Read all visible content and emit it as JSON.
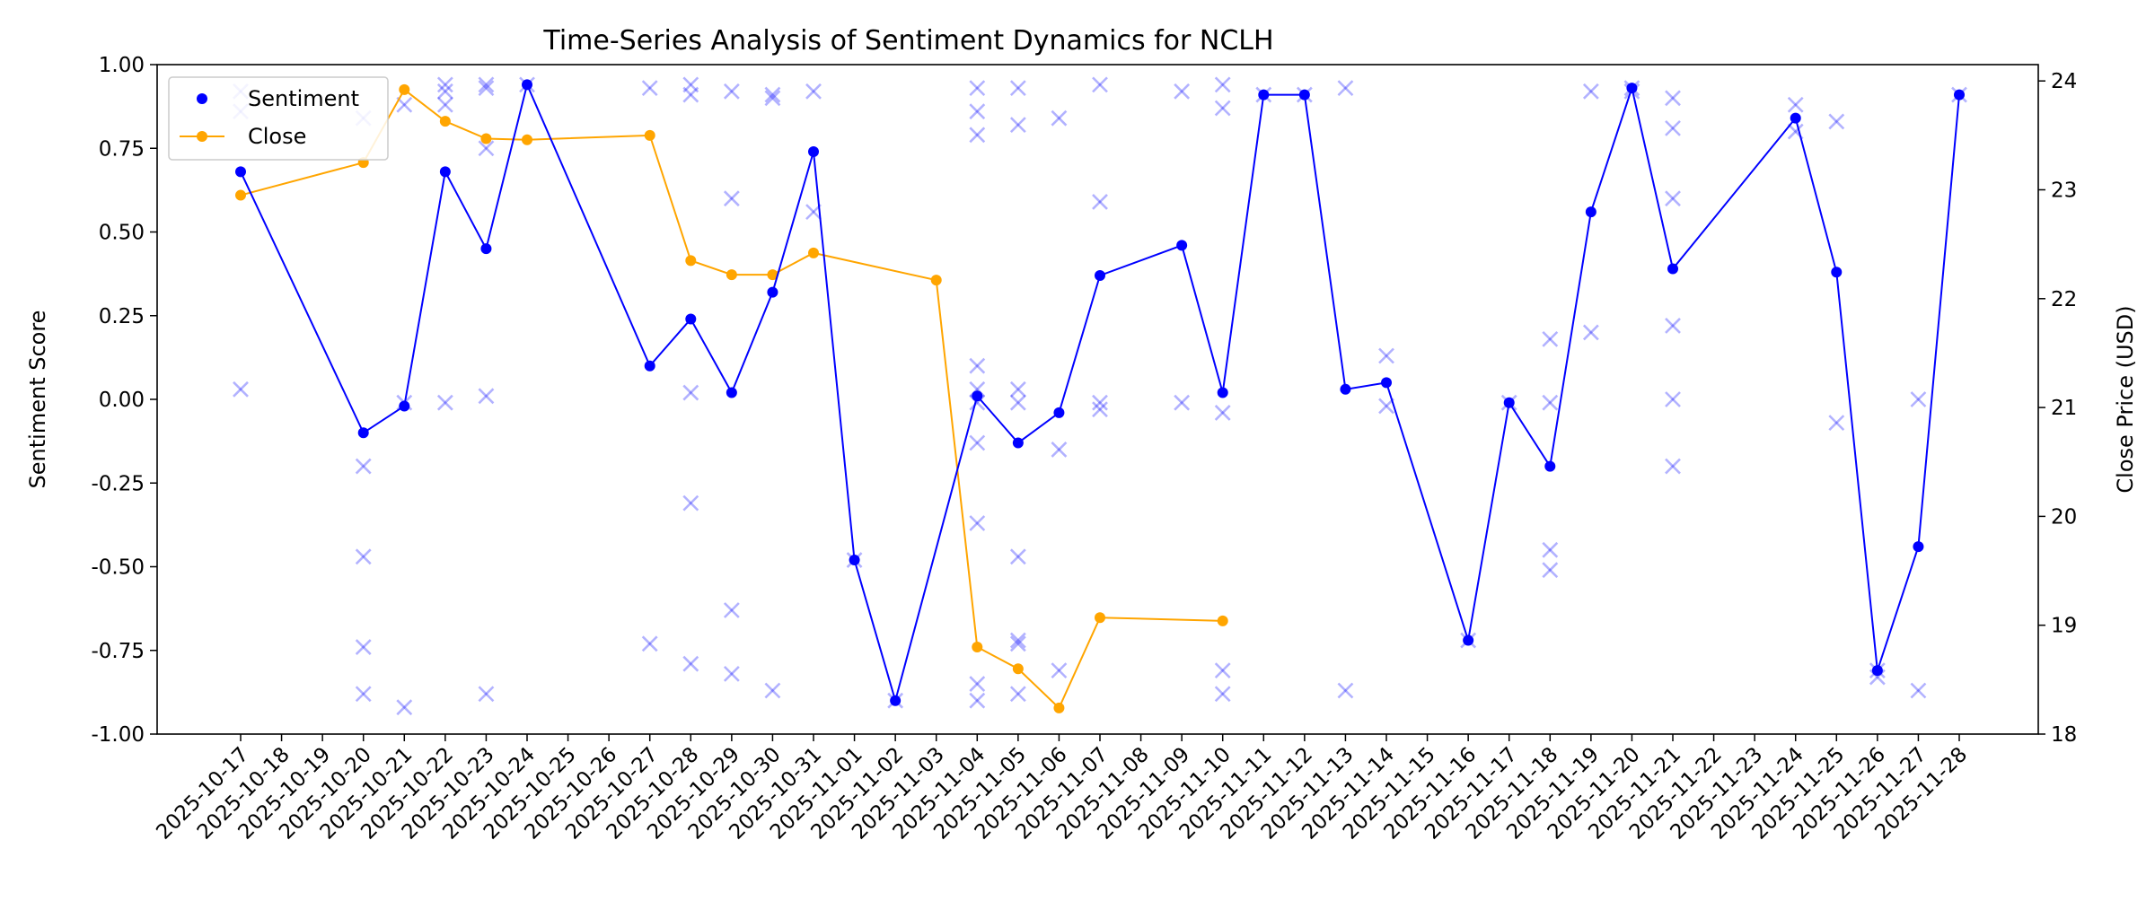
{
  "chart_data": {
    "type": "line",
    "title": "Time-Series Analysis of Sentiment Dynamics for NCLH",
    "ylabel_left": "Sentiment Score",
    "ylabel_right": "Close Price (USD)",
    "xlabel": "",
    "x_tick_labels": [
      "2025-10-17",
      "2025-10-18",
      "2025-10-19",
      "2025-10-20",
      "2025-10-21",
      "2025-10-22",
      "2025-10-23",
      "2025-10-24",
      "2025-10-25",
      "2025-10-26",
      "2025-10-27",
      "2025-10-28",
      "2025-10-29",
      "2025-10-30",
      "2025-10-31",
      "2025-11-01",
      "2025-11-02",
      "2025-11-03",
      "2025-11-04",
      "2025-11-05",
      "2025-11-06",
      "2025-11-07",
      "2025-11-08",
      "2025-11-09",
      "2025-11-10",
      "2025-11-11",
      "2025-11-12",
      "2025-11-13",
      "2025-11-14",
      "2025-11-15",
      "2025-11-16",
      "2025-11-17",
      "2025-11-18",
      "2025-11-19",
      "2025-11-20",
      "2025-11-21",
      "2025-11-22",
      "2025-11-23",
      "2025-11-24",
      "2025-11-25",
      "2025-11-26",
      "2025-11-27",
      "2025-11-28"
    ],
    "ylim_left": [
      -1.0,
      1.0
    ],
    "yticks_left": [
      "-1.00",
      "-0.75",
      "-0.50",
      "-0.25",
      "0.00",
      "0.25",
      "0.50",
      "0.75",
      "1.00"
    ],
    "ylim_right": [
      18.0,
      24.15
    ],
    "yticks_right": [
      "18",
      "19",
      "20",
      "21",
      "22",
      "23",
      "24"
    ],
    "legend_position": "upper-left",
    "legend": [
      "Sentiment",
      "Close"
    ],
    "colors": {
      "sentiment": "#0000ff",
      "close": "#ffa500",
      "raw": "#7b7bff"
    },
    "series": [
      {
        "name": "Sentiment",
        "axis": "left",
        "points": [
          [
            "2025-10-17",
            0.68
          ],
          [
            "2025-10-20",
            -0.1
          ],
          [
            "2025-10-21",
            -0.02
          ],
          [
            "2025-10-22",
            0.68
          ],
          [
            "2025-10-23",
            0.45
          ],
          [
            "2025-10-24",
            0.94
          ],
          [
            "2025-10-27",
            0.1
          ],
          [
            "2025-10-28",
            0.24
          ],
          [
            "2025-10-29",
            0.02
          ],
          [
            "2025-10-30",
            0.32
          ],
          [
            "2025-10-31",
            0.74
          ],
          [
            "2025-11-01",
            -0.48
          ],
          [
            "2025-11-02",
            -0.9
          ],
          [
            "2025-11-04",
            0.01
          ],
          [
            "2025-11-05",
            -0.13
          ],
          [
            "2025-11-06",
            -0.04
          ],
          [
            "2025-11-07",
            0.37
          ],
          [
            "2025-11-09",
            0.46
          ],
          [
            "2025-11-10",
            0.02
          ],
          [
            "2025-11-11",
            0.91
          ],
          [
            "2025-11-12",
            0.91
          ],
          [
            "2025-11-13",
            0.03
          ],
          [
            "2025-11-14",
            0.05
          ],
          [
            "2025-11-16",
            -0.72
          ],
          [
            "2025-11-17",
            -0.01
          ],
          [
            "2025-11-18",
            -0.2
          ],
          [
            "2025-11-19",
            0.56
          ],
          [
            "2025-11-20",
            0.93
          ],
          [
            "2025-11-21",
            0.39
          ],
          [
            "2025-11-24",
            0.84
          ],
          [
            "2025-11-25",
            0.38
          ],
          [
            "2025-11-26",
            -0.81
          ],
          [
            "2025-11-27",
            -0.44
          ],
          [
            "2025-11-28",
            0.91
          ]
        ]
      },
      {
        "name": "Close",
        "axis": "right",
        "points": [
          [
            "2025-10-17",
            22.95
          ],
          [
            "2025-10-20",
            23.25
          ],
          [
            "2025-10-21",
            23.92
          ],
          [
            "2025-10-22",
            23.63
          ],
          [
            "2025-10-23",
            23.47
          ],
          [
            "2025-10-24",
            23.46
          ],
          [
            "2025-10-27",
            23.5
          ],
          [
            "2025-10-28",
            22.35
          ],
          [
            "2025-10-29",
            22.22
          ],
          [
            "2025-10-30",
            22.22
          ],
          [
            "2025-10-31",
            22.42
          ],
          [
            "2025-11-03",
            22.17
          ],
          [
            "2025-11-04",
            18.8
          ],
          [
            "2025-11-05",
            18.6
          ],
          [
            "2025-11-06",
            18.24
          ],
          [
            "2025-11-07",
            19.07
          ],
          [
            "2025-11-10",
            19.04
          ]
        ]
      },
      {
        "name": "",
        "axis": "left",
        "marker": "x",
        "points": [
          [
            "2025-10-17",
            0.92
          ],
          [
            "2025-10-17",
            0.86
          ],
          [
            "2025-10-17",
            0.03
          ],
          [
            "2025-10-20",
            0.84
          ],
          [
            "2025-10-20",
            -0.2
          ],
          [
            "2025-10-20",
            -0.47
          ],
          [
            "2025-10-20",
            -0.74
          ],
          [
            "2025-10-20",
            -0.88
          ],
          [
            "2025-10-21",
            0.88
          ],
          [
            "2025-10-21",
            -0.01
          ],
          [
            "2025-10-21",
            -0.92
          ],
          [
            "2025-10-22",
            0.94
          ],
          [
            "2025-10-22",
            0.92
          ],
          [
            "2025-10-22",
            0.88
          ],
          [
            "2025-10-22",
            -0.01
          ],
          [
            "2025-10-23",
            0.94
          ],
          [
            "2025-10-23",
            0.93
          ],
          [
            "2025-10-23",
            0.75
          ],
          [
            "2025-10-23",
            0.01
          ],
          [
            "2025-10-23",
            -0.88
          ],
          [
            "2025-10-24",
            0.94
          ],
          [
            "2025-10-27",
            0.93
          ],
          [
            "2025-10-27",
            -0.73
          ],
          [
            "2025-10-28",
            0.94
          ],
          [
            "2025-10-28",
            0.91
          ],
          [
            "2025-10-28",
            0.02
          ],
          [
            "2025-10-28",
            -0.31
          ],
          [
            "2025-10-28",
            -0.79
          ],
          [
            "2025-10-29",
            0.92
          ],
          [
            "2025-10-29",
            0.6
          ],
          [
            "2025-10-29",
            -0.63
          ],
          [
            "2025-10-29",
            -0.82
          ],
          [
            "2025-10-30",
            0.91
          ],
          [
            "2025-10-30",
            0.9
          ],
          [
            "2025-10-30",
            -0.87
          ],
          [
            "2025-10-31",
            0.92
          ],
          [
            "2025-10-31",
            0.56
          ],
          [
            "2025-11-01",
            -0.48
          ],
          [
            "2025-11-02",
            -0.9
          ],
          [
            "2025-11-04",
            0.93
          ],
          [
            "2025-11-04",
            0.86
          ],
          [
            "2025-11-04",
            0.79
          ],
          [
            "2025-11-04",
            0.1
          ],
          [
            "2025-11-04",
            0.03
          ],
          [
            "2025-11-04",
            -0.01
          ],
          [
            "2025-11-04",
            -0.13
          ],
          [
            "2025-11-04",
            -0.37
          ],
          [
            "2025-11-04",
            -0.85
          ],
          [
            "2025-11-04",
            -0.9
          ],
          [
            "2025-11-05",
            0.93
          ],
          [
            "2025-11-05",
            0.82
          ],
          [
            "2025-11-05",
            0.03
          ],
          [
            "2025-11-05",
            -0.01
          ],
          [
            "2025-11-05",
            -0.47
          ],
          [
            "2025-11-05",
            -0.72
          ],
          [
            "2025-11-05",
            -0.73
          ],
          [
            "2025-11-05",
            -0.88
          ],
          [
            "2025-11-06",
            0.84
          ],
          [
            "2025-11-06",
            -0.15
          ],
          [
            "2025-11-06",
            -0.81
          ],
          [
            "2025-11-07",
            0.94
          ],
          [
            "2025-11-07",
            0.59
          ],
          [
            "2025-11-07",
            -0.01
          ],
          [
            "2025-11-07",
            -0.03
          ],
          [
            "2025-11-09",
            0.92
          ],
          [
            "2025-11-09",
            -0.01
          ],
          [
            "2025-11-10",
            0.94
          ],
          [
            "2025-11-10",
            0.87
          ],
          [
            "2025-11-10",
            -0.04
          ],
          [
            "2025-11-10",
            -0.81
          ],
          [
            "2025-11-10",
            -0.88
          ],
          [
            "2025-11-11",
            0.91
          ],
          [
            "2025-11-12",
            0.91
          ],
          [
            "2025-11-13",
            0.93
          ],
          [
            "2025-11-13",
            -0.87
          ],
          [
            "2025-11-14",
            0.13
          ],
          [
            "2025-11-14",
            -0.02
          ],
          [
            "2025-11-16",
            -0.72
          ],
          [
            "2025-11-17",
            -0.01
          ],
          [
            "2025-11-18",
            0.18
          ],
          [
            "2025-11-18",
            -0.01
          ],
          [
            "2025-11-18",
            -0.45
          ],
          [
            "2025-11-18",
            -0.51
          ],
          [
            "2025-11-19",
            0.92
          ],
          [
            "2025-11-19",
            0.2
          ],
          [
            "2025-11-20",
            0.93
          ],
          [
            "2025-11-20",
            0.92
          ],
          [
            "2025-11-21",
            0.9
          ],
          [
            "2025-11-21",
            0.81
          ],
          [
            "2025-11-21",
            0.6
          ],
          [
            "2025-11-21",
            0.22
          ],
          [
            "2025-11-21",
            0.0
          ],
          [
            "2025-11-21",
            -0.2
          ],
          [
            "2025-11-24",
            0.88
          ],
          [
            "2025-11-24",
            0.8
          ],
          [
            "2025-11-25",
            0.83
          ],
          [
            "2025-11-25",
            -0.07
          ],
          [
            "2025-11-26",
            -0.81
          ],
          [
            "2025-11-26",
            -0.83
          ],
          [
            "2025-11-27",
            0.0
          ],
          [
            "2025-11-27",
            -0.87
          ],
          [
            "2025-11-28",
            0.91
          ]
        ]
      }
    ]
  }
}
